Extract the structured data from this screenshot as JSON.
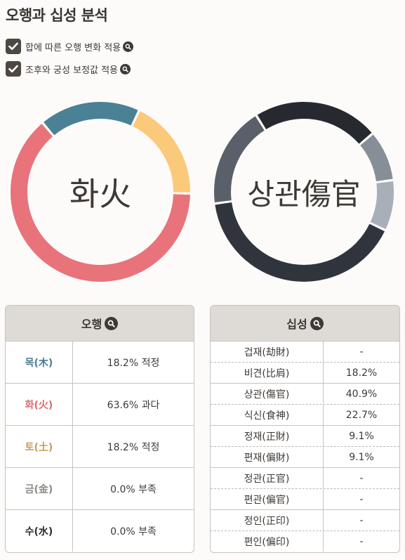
{
  "title": "오행과 십성 분석",
  "options": [
    {
      "label": "합에 따른 오행 변화 적용",
      "checked": true
    },
    {
      "label": "조후와 궁성 보정값 적용",
      "checked": true
    }
  ],
  "donut_left": {
    "center_label": "화火",
    "segments": [
      {
        "name": "목(木)",
        "percent": 18.2,
        "color": "#4a8194"
      },
      {
        "name": "토(土)",
        "percent": 18.2,
        "color": "#fbc97a"
      },
      {
        "name": "화(火)",
        "percent": 63.6,
        "color": "#e8737b"
      }
    ]
  },
  "donut_right": {
    "center_label": "상관傷官",
    "segments": [
      {
        "name": "식신(食神)",
        "percent": 22.7,
        "color": "#26292f"
      },
      {
        "name": "정재(正財)",
        "percent": 9.1,
        "color": "#868e98"
      },
      {
        "name": "편재(偏財)",
        "percent": 9.1,
        "color": "#a8afb8"
      },
      {
        "name": "상관(傷官)",
        "percent": 40.9,
        "color": "#30353d"
      },
      {
        "name": "비견(比肩)",
        "percent": 18.2,
        "color": "#59606a"
      }
    ]
  },
  "ohaeng_table": {
    "header": "오행",
    "rows": [
      {
        "name": "목(木)",
        "value": "18.2% 적정",
        "color": "#4a7d96"
      },
      {
        "name": "화(火)",
        "value": "63.6% 과다",
        "color": "#d96d70"
      },
      {
        "name": "토(土)",
        "value": "18.2% 적정",
        "color": "#c89a5a"
      },
      {
        "name": "금(金)",
        "value": "0.0% 부족",
        "color": "#8e8a85"
      },
      {
        "name": "수(水)",
        "value": "0.0% 부족",
        "color": "#2f2e30"
      }
    ]
  },
  "sipseong_table": {
    "header": "십성",
    "rows": [
      {
        "name": "겁재(劫財)",
        "value": "-"
      },
      {
        "name": "비견(比肩)",
        "value": "18.2%"
      },
      {
        "name": "상관(傷官)",
        "value": "40.9%"
      },
      {
        "name": "식신(食神)",
        "value": "22.7%"
      },
      {
        "name": "정재(正財)",
        "value": "9.1%"
      },
      {
        "name": "편재(偏財)",
        "value": "9.1%"
      },
      {
        "name": "정관(正官)",
        "value": "-"
      },
      {
        "name": "편관(偏官)",
        "value": "-"
      },
      {
        "name": "정인(正印)",
        "value": "-"
      },
      {
        "name": "편인(偏印)",
        "value": "-"
      }
    ]
  }
}
